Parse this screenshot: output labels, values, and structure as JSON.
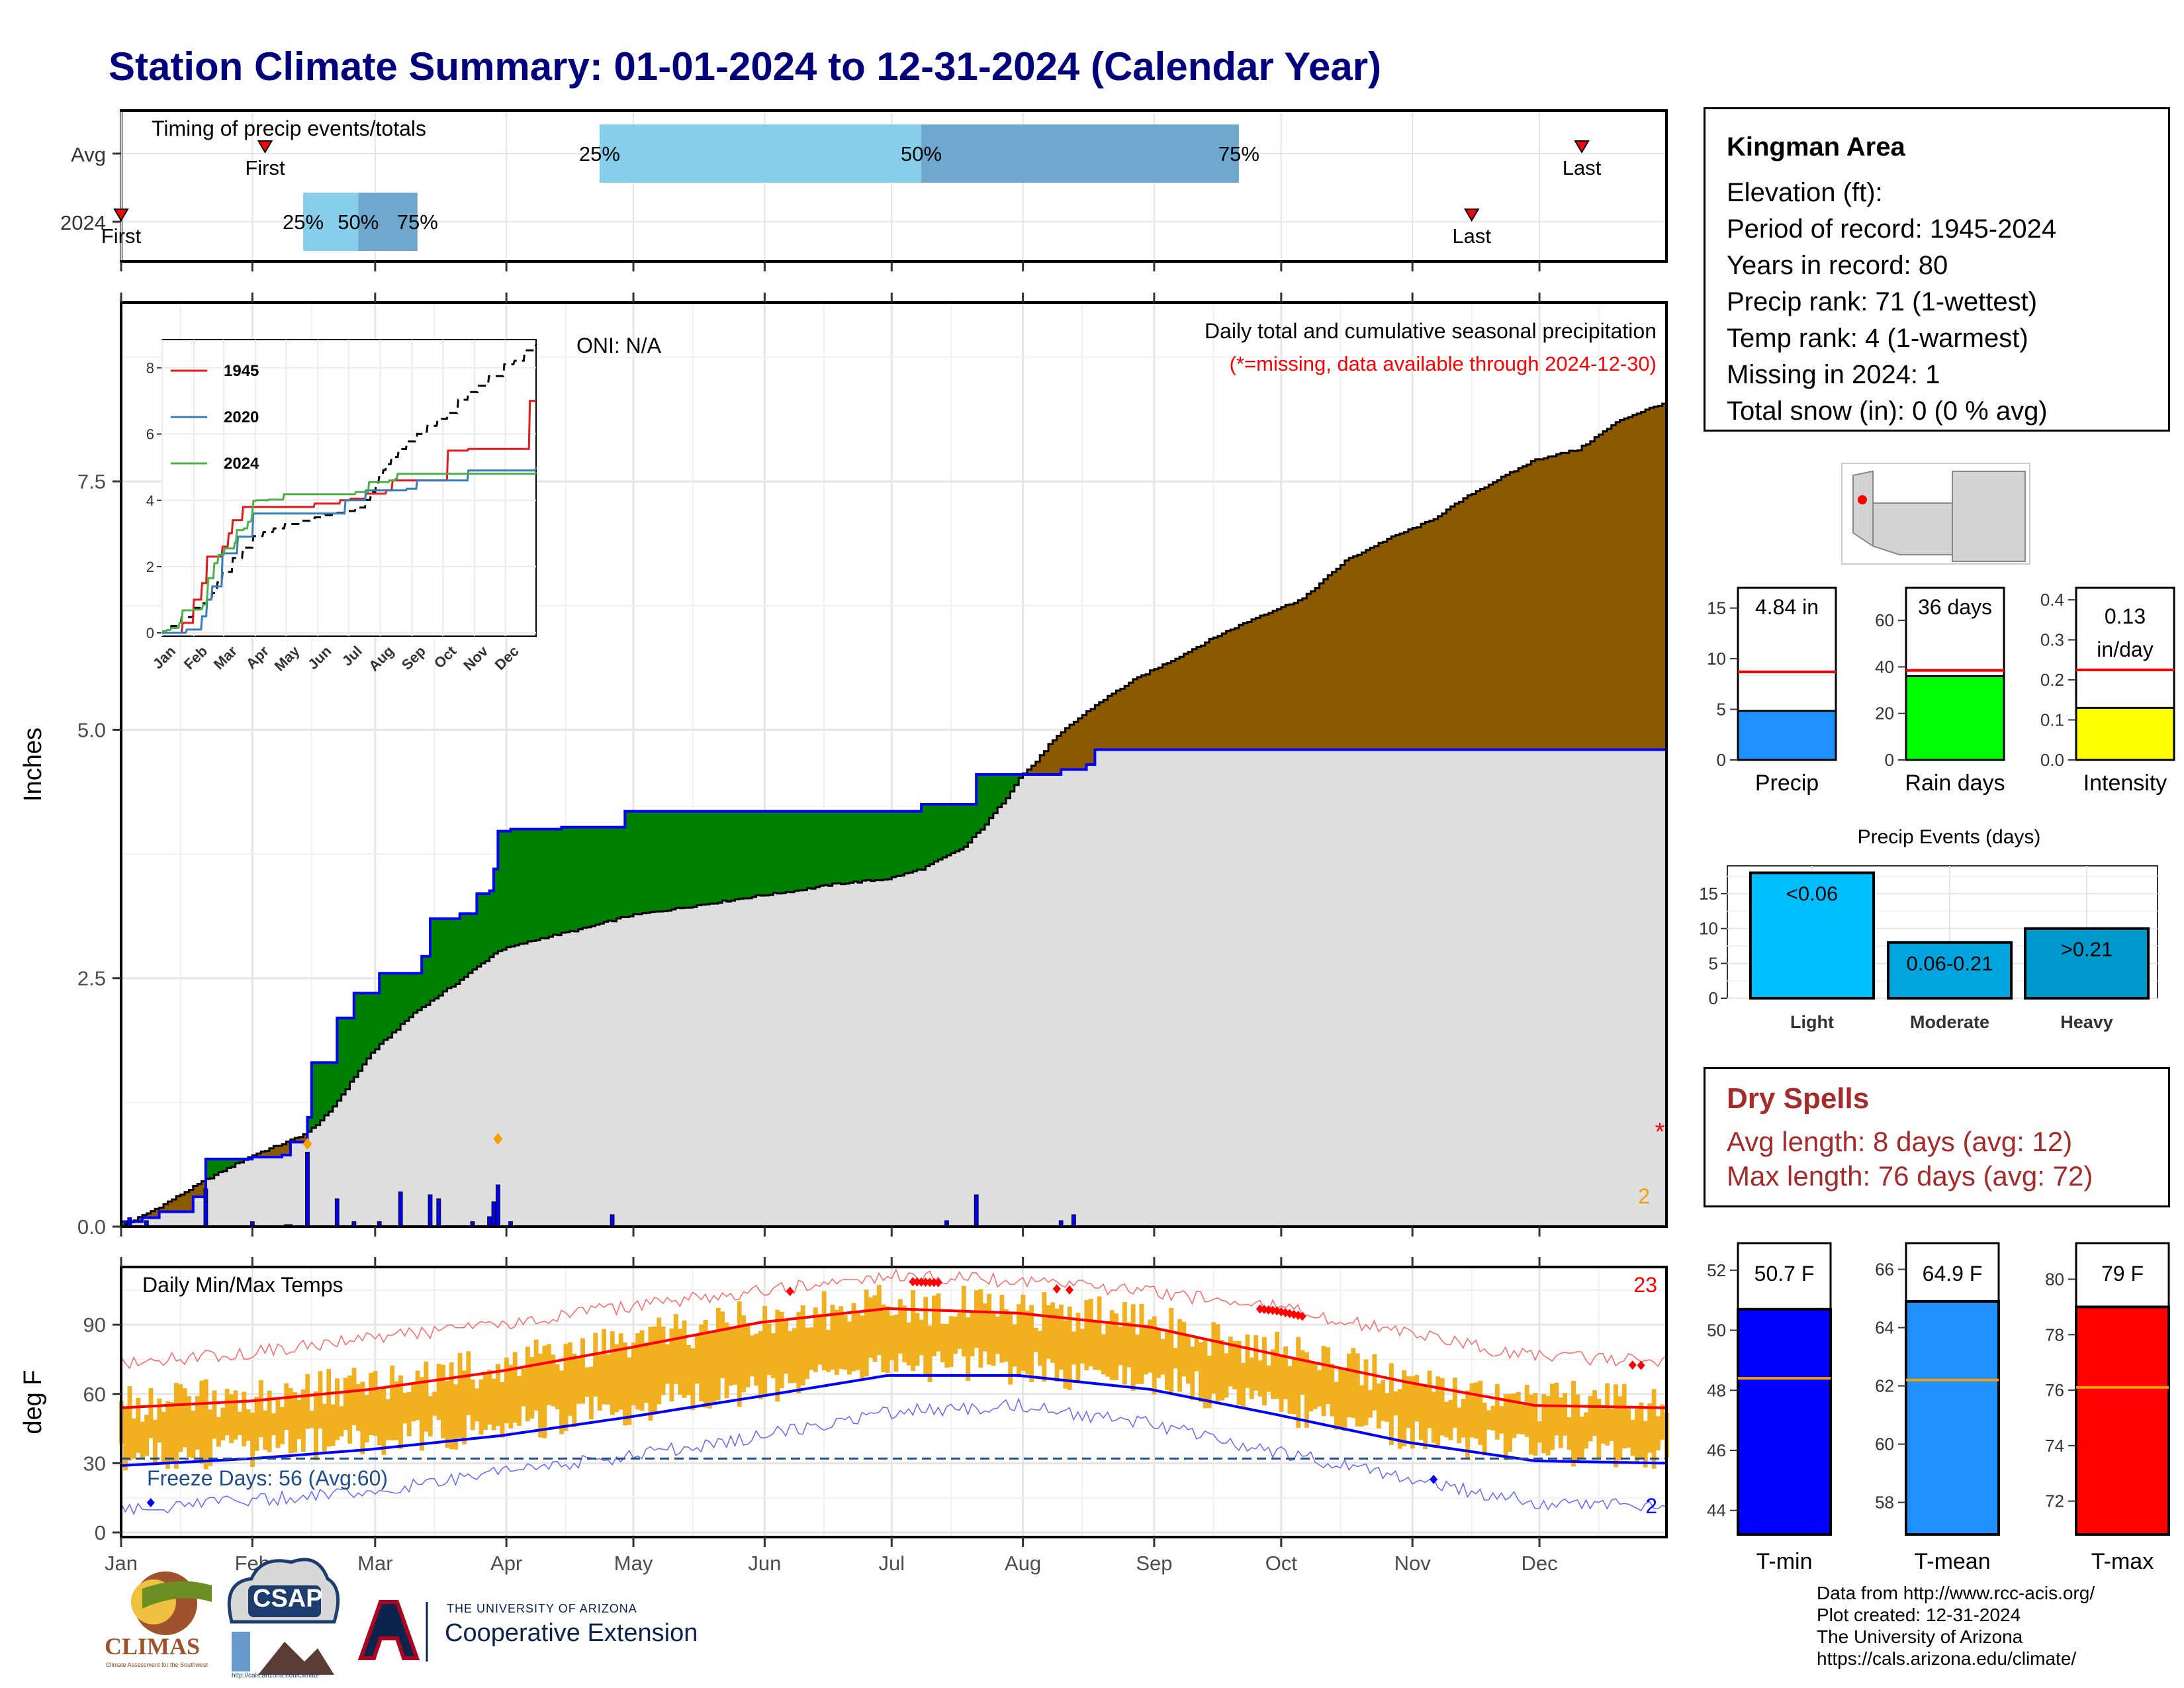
{
  "page_title": "Station Climate Summary: 01-01-2024 to 12-31-2024 (Calendar Year)",
  "months": [
    "Jan",
    "Feb",
    "Mar",
    "Apr",
    "May",
    "Jun",
    "Jul",
    "Aug",
    "Sep",
    "Oct",
    "Nov",
    "Dec"
  ],
  "colors": {
    "title": "#00007f",
    "avg_fill": "#8b5a00",
    "current_fill": "#008000",
    "normal_area": "#dedede",
    "daily_bar": "#0000ff",
    "temp_range": "#f0b020",
    "normal_max": "#ff0000",
    "normal_min": "#0000ff",
    "dry_text": "#a52a2a"
  },
  "timing_panel": {
    "title": "Timing of precip events/totals",
    "row_labels": [
      "Avg",
      "2024"
    ],
    "avg": {
      "first_day": 35,
      "p25_day": 114,
      "p50_day": 190,
      "p75_day": 265,
      "last_day": 346,
      "first_label": "First",
      "p25_label": "25%",
      "p50_label": "50%",
      "p75_label": "75%",
      "last_label": "Last"
    },
    "current": {
      "first_day": 1,
      "p25_day": 44,
      "p50_day": 57,
      "p75_day": 71,
      "last_day": 320,
      "first_label": "First",
      "p25_label": "25%",
      "p50_label": "50%",
      "p75_label": "75%",
      "last_label": "Last"
    }
  },
  "precip_panel": {
    "ylabel": "Inches",
    "yticks": [
      "0.0",
      "2.5",
      "5.0",
      "7.5"
    ],
    "caption": "Daily total and cumulative seasonal precipitation",
    "missing_note": "(*=missing, data available through 2024-12-30)",
    "oni": "ONI: N/A",
    "missing_count": "2",
    "missing_marker": "*"
  },
  "inset": {
    "series": [
      {
        "name": "1945",
        "color": "#e41a1c"
      },
      {
        "name": "2020",
        "color": "#377eb8"
      },
      {
        "name": "2024",
        "color": "#4daf4a"
      }
    ],
    "yticks": [
      "0",
      "2",
      "4",
      "6",
      "8"
    ],
    "months": [
      "Jan",
      "Feb",
      "Mar",
      "Apr",
      "May",
      "Jun",
      "Jul",
      "Aug",
      "Sep",
      "Oct",
      "Nov",
      "Dec"
    ]
  },
  "temp_panel": {
    "title": "Daily Min/Max Temps",
    "ylabel": "deg F",
    "yticks": [
      "0",
      "30",
      "60",
      "90"
    ],
    "freeze": "Freeze Days: 56 (Avg:60)",
    "record_high_count": "23",
    "record_low_count": "2"
  },
  "station": {
    "name": "Kingman Area",
    "lines": [
      "Elevation (ft):",
      "Period of record: 1945-2024",
      "Years in record: 80",
      "Precip rank: 71 (1-wettest)",
      "Temp rank: 4 (1-warmest)",
      "Missing in 2024: 1",
      "Total snow (in): 0 (0 % avg)"
    ]
  },
  "mini_bars": [
    {
      "label": "Precip",
      "value_text": "4.84 in",
      "value": 4.84,
      "normal": 8.7,
      "ymax": 17,
      "yticks": [
        "0",
        "5",
        "10",
        "15"
      ],
      "ytick_values": [
        0,
        5,
        10,
        15
      ],
      "color": "#1e90ff"
    },
    {
      "label": "Rain days",
      "value_text": "36 days",
      "value": 36,
      "normal": 38.5,
      "ymax": 74,
      "yticks": [
        "0",
        "20",
        "40",
        "60"
      ],
      "ytick_values": [
        0,
        20,
        40,
        60
      ],
      "color": "#00ff00"
    },
    {
      "label": "Intensity",
      "value_text": "0.13 in/day",
      "value": 0.13,
      "normal": 0.225,
      "ymax": 0.43,
      "yticks": [
        "0.0",
        "0.1",
        "0.2",
        "0.3",
        "0.4"
      ],
      "ytick_values": [
        0,
        0.1,
        0.2,
        0.3,
        0.4
      ],
      "color": "#ffff00"
    }
  ],
  "events": {
    "title": "Precip Events (days)",
    "categories": [
      "Light",
      "Moderate",
      "Heavy"
    ],
    "labels": [
      "<0.06",
      "0.06-0.21",
      ">0.21"
    ],
    "values": [
      18,
      8,
      10
    ],
    "yticks": [
      "0",
      "5",
      "10",
      "15"
    ]
  },
  "dry_spells": {
    "title": "Dry Spells",
    "avg": "Avg length: 8 days (avg: 12)",
    "max": "Max length: 76 days (avg: 72)"
  },
  "temp_bars": [
    {
      "label": "T-min",
      "value_text": "50.7 F",
      "value": 50.7,
      "normal": 48.4,
      "ymin": 43.2,
      "ymax": 52.9,
      "yticks": [
        "44",
        "46",
        "48",
        "50",
        "52"
      ],
      "ytick_values": [
        44,
        46,
        48,
        50,
        52
      ],
      "color": "#0000ff"
    },
    {
      "label": "T-mean",
      "value_text": "64.9 F",
      "value": 64.9,
      "normal": 62.2,
      "ymin": 56.9,
      "ymax": 66.9,
      "yticks": [
        "58",
        "60",
        "62",
        "64",
        "66"
      ],
      "ytick_values": [
        58,
        60,
        62,
        64,
        66
      ],
      "color": "#1e90ff"
    },
    {
      "label": "T-max",
      "value_text": "79 F",
      "value": 79,
      "normal": 76.1,
      "ymin": 70.8,
      "ymax": 81.3,
      "yticks": [
        "72",
        "74",
        "76",
        "78",
        "80"
      ],
      "ytick_values": [
        72,
        74,
        76,
        78,
        80
      ],
      "color": "#ff0000"
    }
  ],
  "footer": [
    "Data from http://www.rcc-acis.org/",
    "Plot created: 12-31-2024",
    "The University of Arizona",
    "https://cals.arizona.edu/climate/"
  ],
  "logos": {
    "climas": "CLIMAS",
    "climas_sub": "Climate Assessment for the Southwest",
    "csap": "CSAP",
    "csap_url": "http://cals.arizona.edu/climate",
    "ua_line1": "THE UNIVERSITY OF ARIZONA",
    "ua_line2": "Cooperative Extension"
  },
  "chart_data": [
    {
      "type": "area",
      "title": "Daily total and cumulative seasonal precipitation",
      "ylabel": "Inches",
      "x_unit": "day of year",
      "ylim": [
        0,
        9.3
      ],
      "series": [
        {
          "name": "Normal cumulative",
          "x": [
            1,
            10,
            20,
            32,
            40,
            45,
            50,
            55,
            60,
            70,
            80,
            90,
            100,
            110,
            121,
            135,
            150,
            160,
            170,
            182,
            190,
            200,
            205,
            210,
            213,
            217,
            220,
            225,
            232,
            240,
            250,
            260,
            270,
            280,
            290,
            300,
            310,
            320,
            335,
            345,
            355,
            366
          ],
          "y": [
            0.0,
            0.2,
            0.45,
            0.72,
            0.85,
            0.95,
            1.15,
            1.45,
            1.75,
            2.15,
            2.45,
            2.78,
            2.9,
            3.0,
            3.13,
            3.22,
            3.32,
            3.38,
            3.45,
            3.5,
            3.6,
            3.82,
            4.05,
            4.32,
            4.52,
            4.68,
            4.85,
            5.05,
            5.28,
            5.5,
            5.72,
            5.95,
            6.15,
            6.32,
            6.7,
            6.92,
            7.1,
            7.38,
            7.72,
            7.82,
            8.12,
            8.3
          ]
        },
        {
          "name": "2024 cumulative",
          "x": [
            1,
            6,
            10,
            18,
            21,
            32,
            39,
            41,
            45,
            46,
            52,
            56,
            62,
            72,
            74,
            81,
            85,
            88,
            89,
            90,
            93,
            105,
            120,
            150,
            180,
            190,
            198,
            203,
            214,
            220,
            223,
            229,
            231,
            366
          ],
          "y": [
            0.05,
            0.09,
            0.15,
            0.3,
            0.68,
            0.7,
            0.72,
            0.85,
            1.1,
            1.65,
            2.1,
            2.35,
            2.55,
            2.72,
            3.1,
            3.15,
            3.35,
            3.38,
            3.6,
            3.98,
            4.0,
            4.02,
            4.18,
            4.18,
            4.18,
            4.25,
            4.25,
            4.55,
            4.55,
            4.55,
            4.6,
            4.65,
            4.8,
            4.84
          ]
        },
        {
          "name": "2024 daily",
          "x": [
            3,
            7,
            21,
            32,
            40,
            41,
            45,
            52,
            56,
            62,
            67,
            74,
            76,
            84,
            88,
            89,
            90,
            93,
            117,
            196,
            203,
            223,
            226
          ],
          "y": [
            0.09,
            0.06,
            0.38,
            0.05,
            0.02,
            0.02,
            0.75,
            0.28,
            0.05,
            0.05,
            0.35,
            0.32,
            0.28,
            0.05,
            0.1,
            0.25,
            0.42,
            0.05,
            0.12,
            0.06,
            0.32,
            0.06,
            0.12
          ]
        }
      ]
    },
    {
      "type": "line",
      "title": "Daily Min/Max Temps",
      "ylabel": "deg F",
      "ylim": [
        -2,
        115
      ],
      "x_unit": "day of year",
      "series": [
        {
          "name": "Normal max",
          "x": [
            1,
            32,
            60,
            91,
            121,
            152,
            182,
            213,
            244,
            274,
            305,
            335,
            366
          ],
          "y": [
            54,
            57,
            62,
            70,
            80,
            91,
            97,
            95,
            89,
            77,
            65,
            55,
            54
          ]
        },
        {
          "name": "Normal min",
          "x": [
            1,
            32,
            60,
            91,
            121,
            152,
            182,
            213,
            244,
            274,
            305,
            335,
            366
          ],
          "y": [
            29,
            32,
            36,
            42,
            50,
            59,
            68,
            68,
            62,
            51,
            39,
            31,
            30
          ]
        },
        {
          "name": "Record max",
          "x": [
            1,
            32,
            60,
            91,
            121,
            152,
            182,
            213,
            244,
            274,
            305,
            335,
            366
          ],
          "y": [
            73,
            78,
            84,
            90,
            98,
            105,
            111,
            109,
            104,
            98,
            86,
            76,
            74
          ]
        },
        {
          "name": "Record min",
          "x": [
            1,
            32,
            60,
            91,
            121,
            152,
            182,
            213,
            244,
            274,
            305,
            335,
            366
          ],
          "y": [
            10,
            14,
            18,
            26,
            33,
            42,
            52,
            55,
            47,
            35,
            23,
            13,
            12
          ]
        }
      ],
      "freeze_line": 32
    },
    {
      "type": "bar",
      "title": "Precip Events (days)",
      "categories": [
        "Light",
        "Moderate",
        "Heavy"
      ],
      "values": [
        18,
        8,
        10
      ],
      "ylim": [
        0,
        19
      ]
    },
    {
      "type": "bar",
      "categories": [
        "Precip",
        "Rain days",
        "Intensity"
      ],
      "values": [
        4.84,
        36,
        0.13
      ],
      "normals": [
        8.7,
        38.5,
        0.225
      ]
    },
    {
      "type": "bar",
      "categories": [
        "T-min",
        "T-mean",
        "T-max"
      ],
      "values": [
        50.7,
        64.9,
        79
      ],
      "normals": [
        48.4,
        62.2,
        76.1
      ]
    }
  ]
}
